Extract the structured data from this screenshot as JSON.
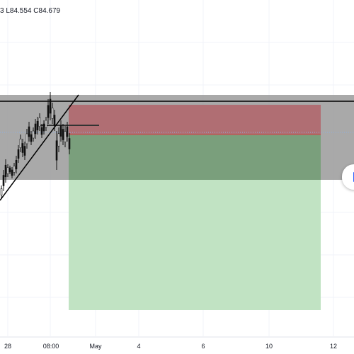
{
  "header": {
    "ohlc_prefix": "3",
    "low": "L84.554",
    "close": "C84.679"
  },
  "time_axis": {
    "labels": [
      "28",
      "08:00",
      "May",
      "4",
      "6",
      "10",
      "12"
    ]
  },
  "colors": {
    "zone": "#9a9a9a",
    "loss": "#b06e73",
    "profit_dark": "#7a9f7c",
    "profit_light": "#c1e3c3",
    "line": "#000000",
    "candle": "#111111",
    "dotted": "#8fb0de",
    "scroll_icon": "#2962ff"
  },
  "scroll_button": {
    "icon": "scroll-to-realtime-icon"
  },
  "chart_data": {
    "type": "candlestick",
    "instrument_price_last": 84.679,
    "price_low_shown": 84.554
  }
}
